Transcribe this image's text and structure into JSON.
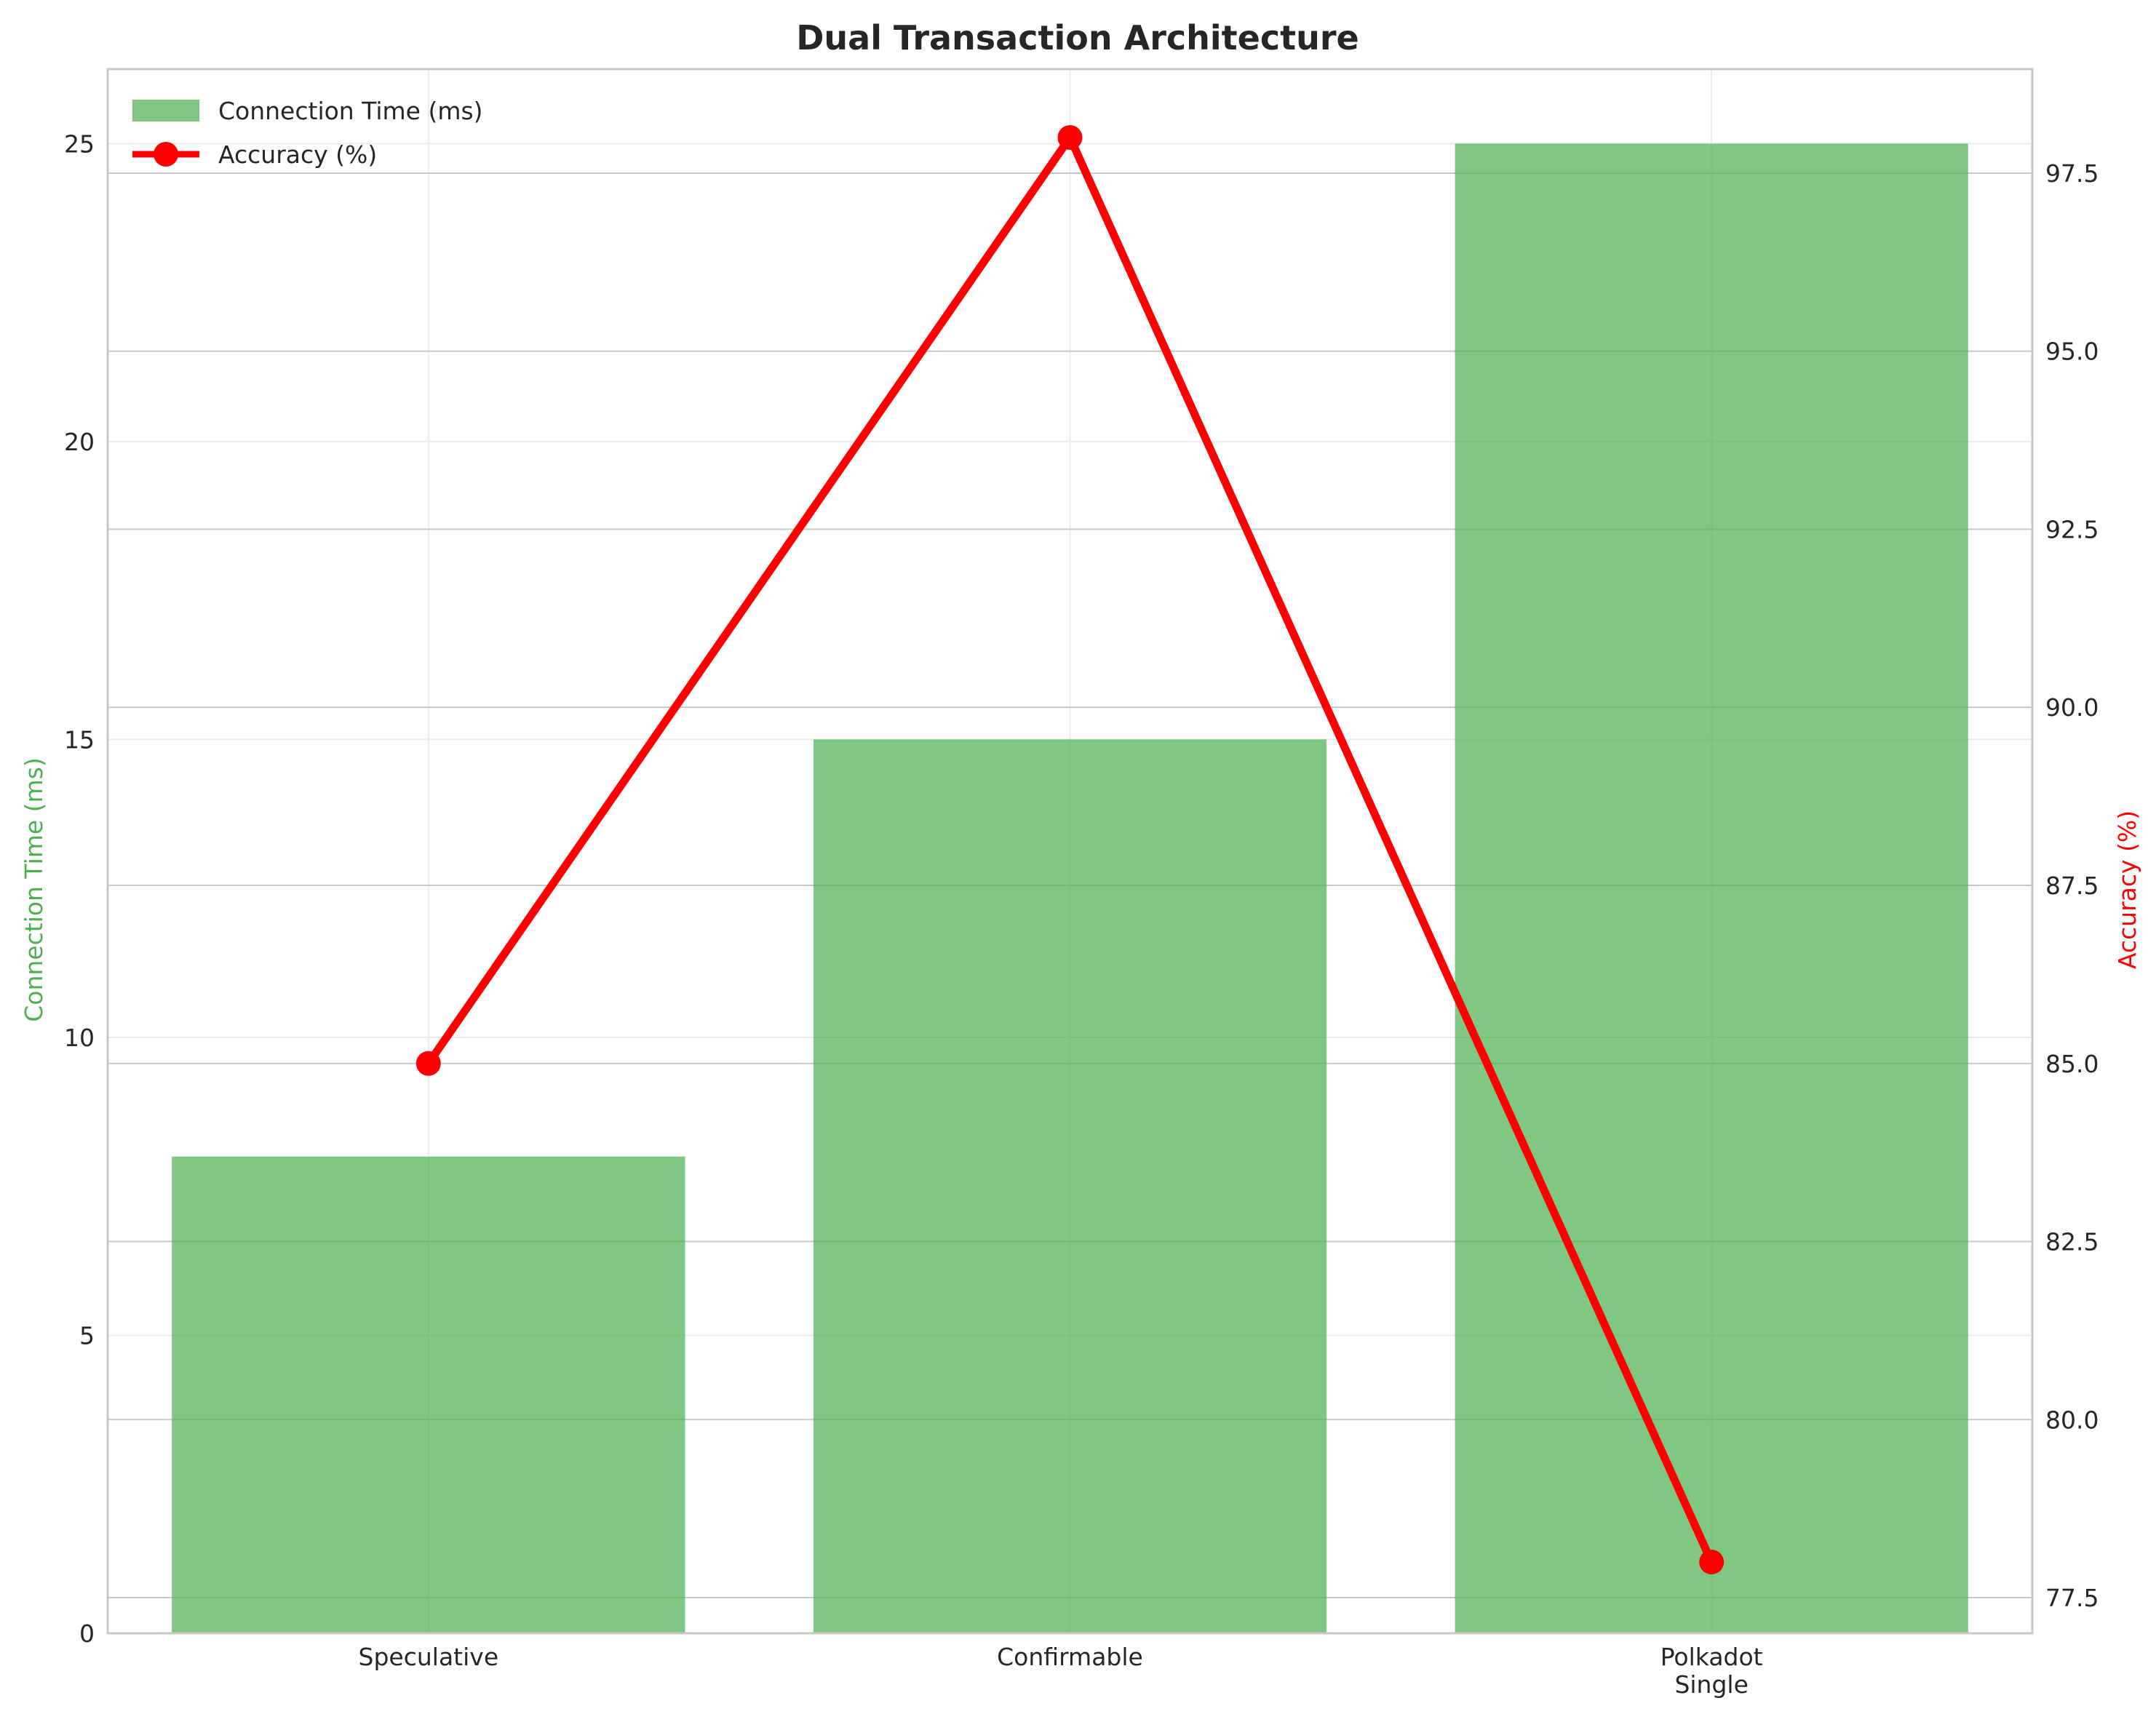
{
  "chart_data": {
    "type": "bar",
    "title": "Dual Transaction Architecture",
    "categories": [
      "Speculative",
      "Confirmable",
      "Polkadot\nSingle"
    ],
    "series": [
      {
        "name": "Connection Time (ms)",
        "type": "bar",
        "axis": "left",
        "values": [
          8,
          15,
          25
        ],
        "color": "#4caf50",
        "opacity": 0.7
      },
      {
        "name": "Accuracy (%)",
        "type": "line",
        "axis": "right",
        "values": [
          85,
          98,
          78
        ],
        "color": "#ff0000",
        "marker": "circle"
      }
    ],
    "ylabel_left": "Connection Time (ms)",
    "ylabel_right": "Accuracy (%)",
    "ylim_left": [
      0,
      26.25
    ],
    "ylim_right": [
      77.0,
      98.96
    ],
    "yticks_left": [
      0,
      5,
      10,
      15,
      20,
      25
    ],
    "yticks_right": [
      77.5,
      80.0,
      82.5,
      85.0,
      87.5,
      90.0,
      92.5,
      95.0,
      97.5
    ],
    "grid": true,
    "legend_position": "top-left"
  }
}
